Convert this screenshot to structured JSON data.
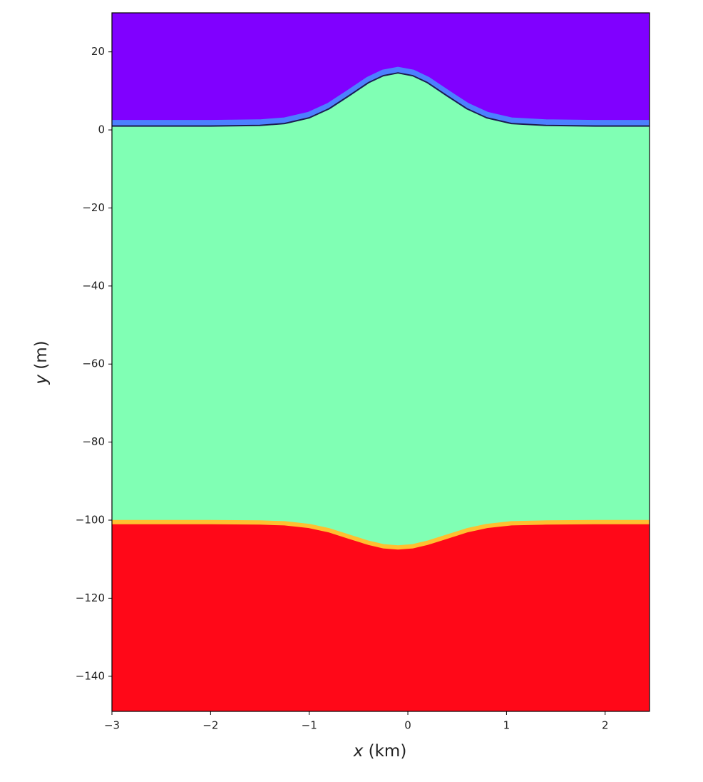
{
  "chart_data": {
    "type": "line",
    "xlabel": {
      "symbol": "x",
      "unit": "(km)"
    },
    "ylabel": {
      "symbol": "y",
      "unit": "(m)"
    },
    "xlim": [
      -3,
      2.45
    ],
    "ylim": [
      -149,
      30
    ],
    "xticks": [
      {
        "value": -3,
        "label": "−3"
      },
      {
        "value": -2,
        "label": "−2"
      },
      {
        "value": -1,
        "label": "−1"
      },
      0,
      1,
      2
    ],
    "yticks": [
      20,
      0,
      {
        "value": -20,
        "label": "−20"
      },
      {
        "value": -40,
        "label": "−40"
      },
      {
        "value": -60,
        "label": "−60"
      },
      {
        "value": -80,
        "label": "−80"
      },
      {
        "value": -100,
        "label": "−100"
      },
      {
        "value": -120,
        "label": "−120"
      },
      {
        "value": -140,
        "label": "−140"
      }
    ],
    "x": [
      -3,
      -2.5,
      -2,
      -1.5,
      -1.25,
      -1,
      -0.8,
      -0.6,
      -0.4,
      -0.25,
      -0.1,
      0.05,
      0.2,
      0.4,
      0.6,
      0.8,
      1.05,
      1.4,
      1.9,
      2.45
    ],
    "surface": [
      1.0,
      1.0,
      1.0,
      1.15,
      1.65,
      3.1,
      5.4,
      8.7,
      12.1,
      13.9,
      14.6,
      13.9,
      12.1,
      8.7,
      5.4,
      3.1,
      1.65,
      1.15,
      1.0,
      1.0
    ],
    "bed": [
      -100.5,
      -100.5,
      -100.5,
      -100.6,
      -100.8,
      -101.5,
      -102.6,
      -104.2,
      -105.8,
      -106.7,
      -107.0,
      -106.7,
      -105.8,
      -104.2,
      -102.6,
      -101.5,
      -100.8,
      -100.6,
      -100.5,
      -100.5
    ],
    "line_color": "#1c1c50",
    "layer_colors": {
      "air": "#8000ff",
      "water": "#80ffb4",
      "ground": "#ff0818",
      "surface_band": "#3fa0ff",
      "bed_band": "#ffc030"
    }
  }
}
